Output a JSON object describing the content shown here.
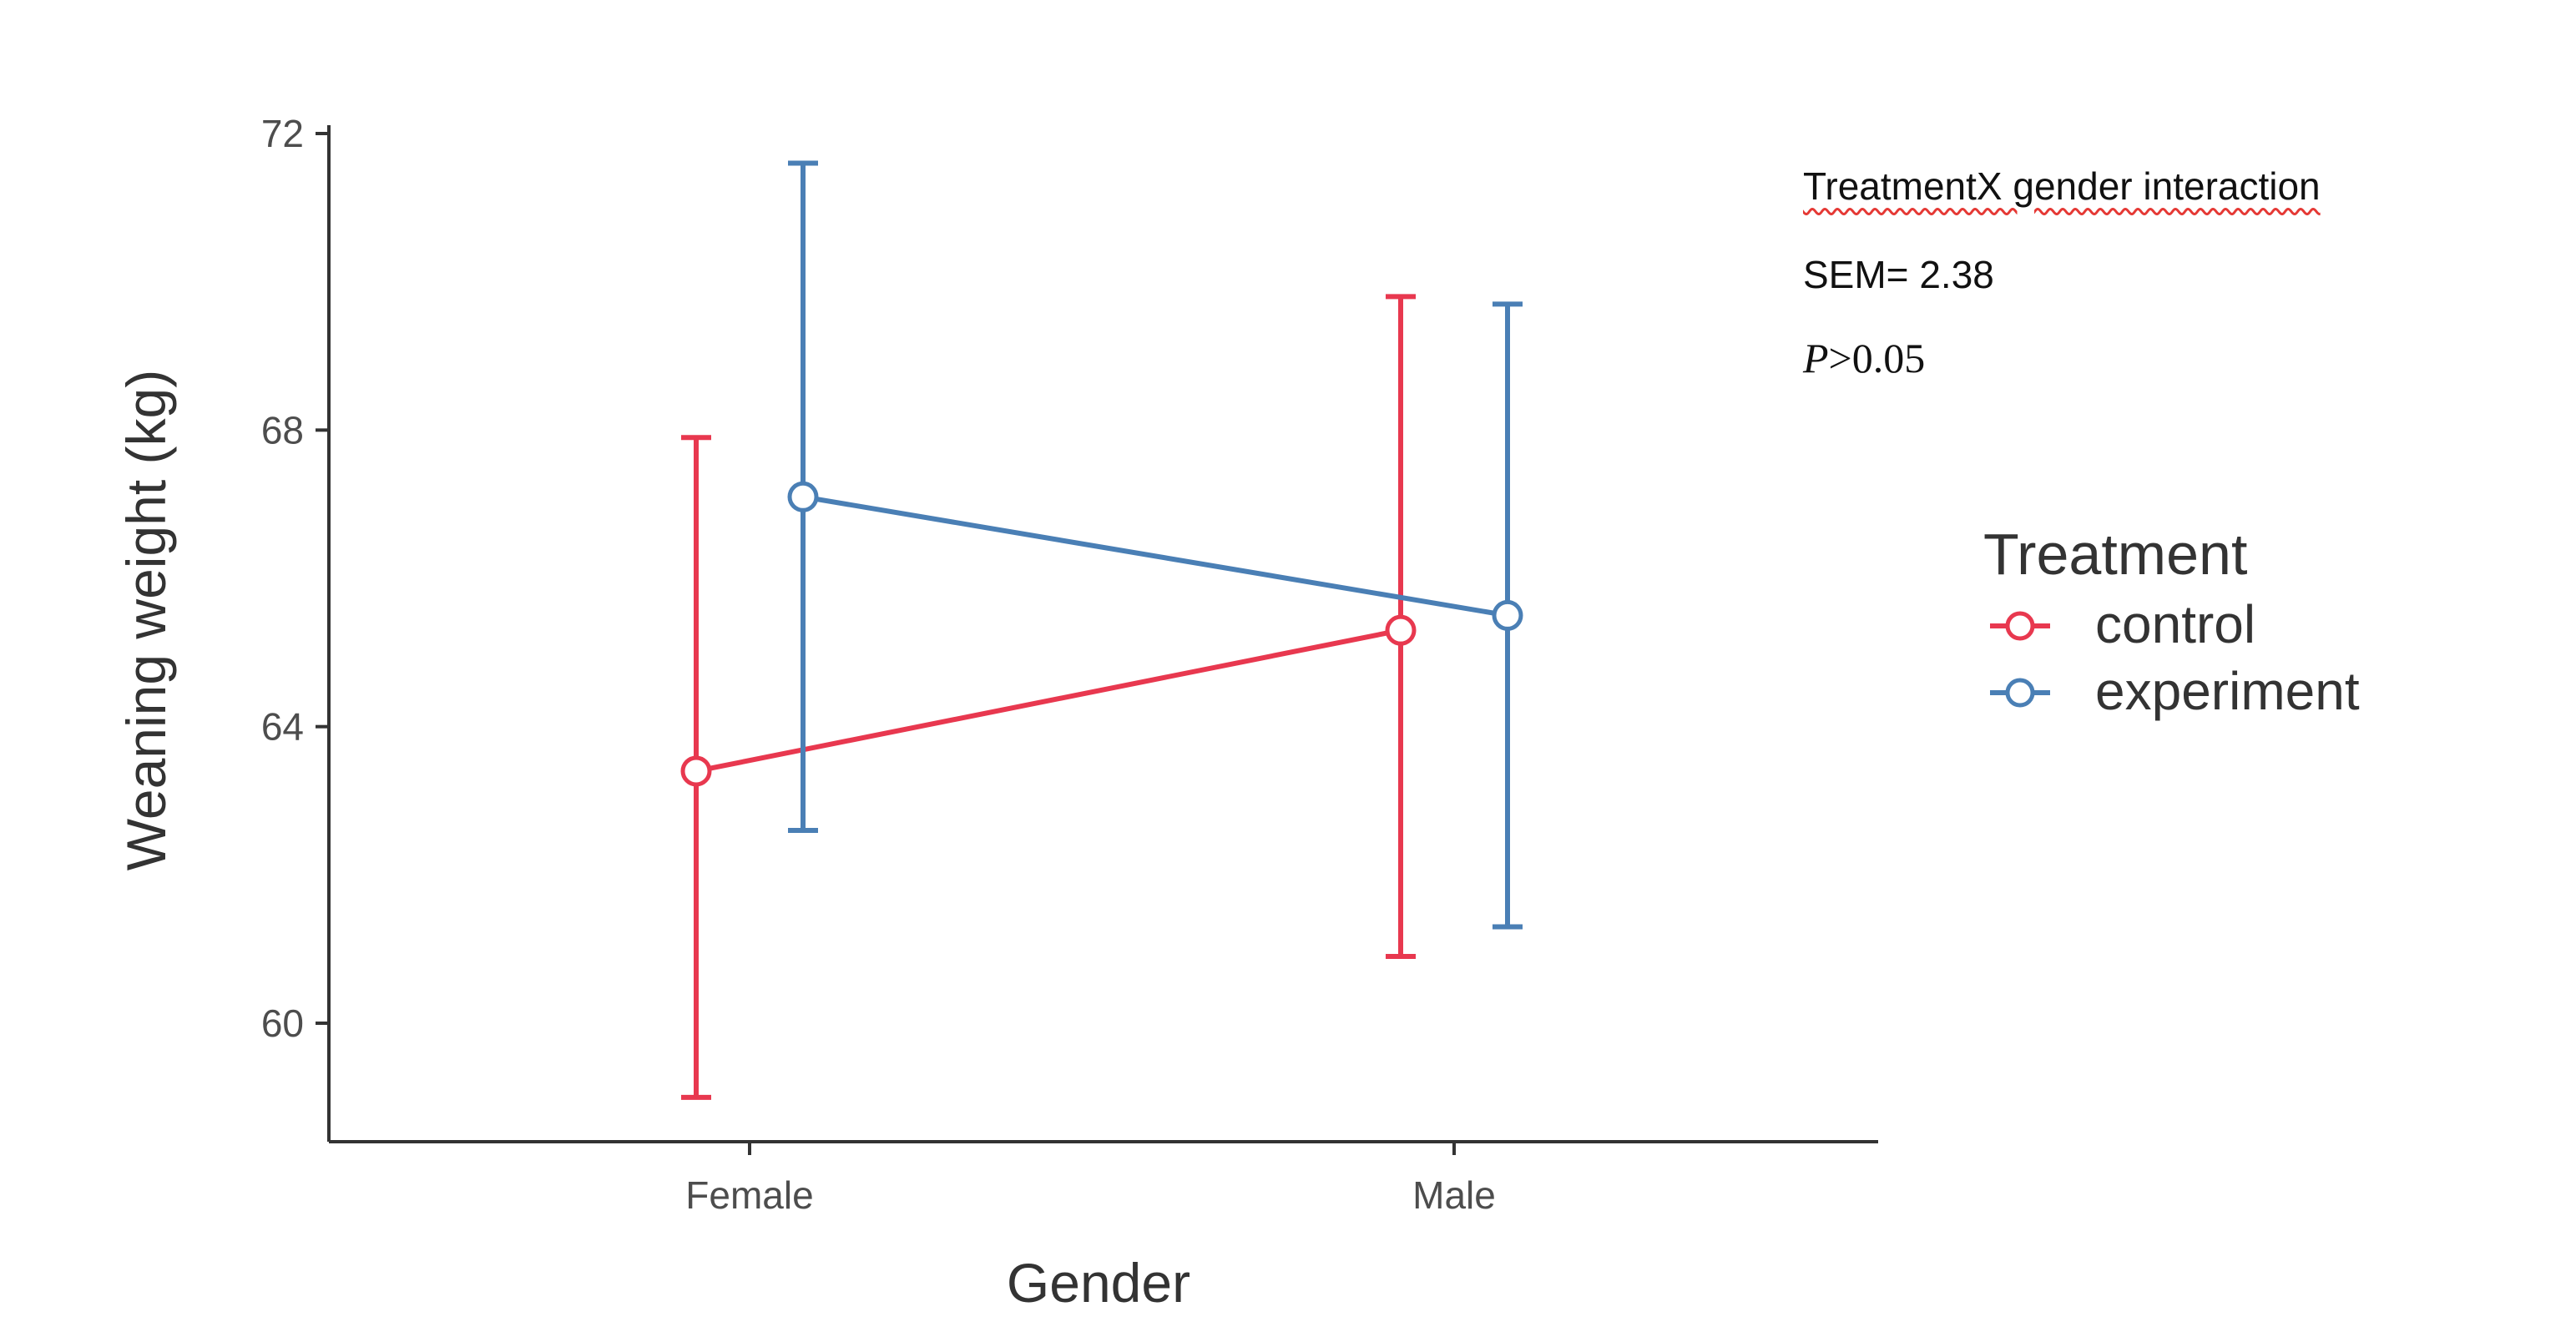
{
  "chart_data": {
    "type": "line",
    "xlabel": "Gender",
    "ylabel": "Weaning weight (kg)",
    "categories": [
      "Female",
      "Male"
    ],
    "ylim": [
      58.5,
      72.0
    ],
    "yticks": [
      60,
      64,
      68,
      72
    ],
    "grid": false,
    "error_bars": true,
    "legend": {
      "title": "Treatment",
      "placement": "right"
    },
    "series": [
      {
        "name": "control",
        "color": "#e8384f",
        "values": [
          63.4,
          65.3
        ],
        "upper": [
          67.9,
          69.8
        ],
        "lower": [
          59.0,
          60.9
        ]
      },
      {
        "name": "experiment",
        "color": "#4a7fb5",
        "values": [
          67.1,
          65.5
        ],
        "upper": [
          71.6,
          69.7
        ],
        "lower": [
          62.6,
          61.3
        ]
      }
    ]
  },
  "annotations": {
    "interaction": "TreatmentX gender interaction",
    "sem": "SEM= 2.38",
    "p_symbol": "P",
    "p_rest": ">0.05"
  }
}
